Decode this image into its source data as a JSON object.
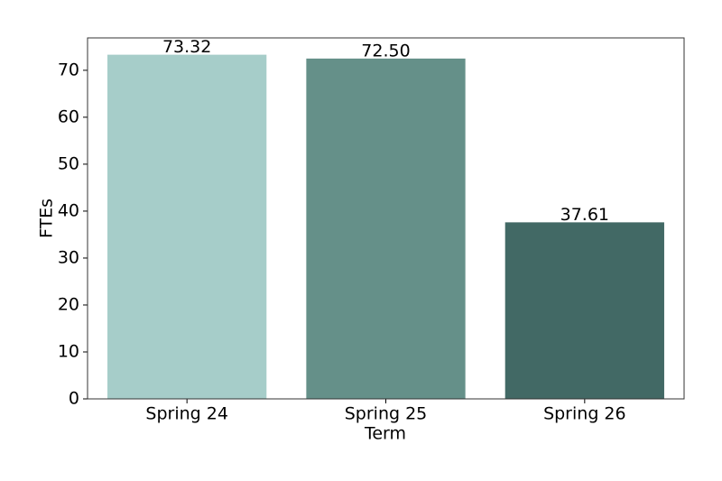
{
  "chart_data": {
    "type": "bar",
    "x_label": "Term",
    "y_label": "FTEs",
    "categories": [
      "Spring 24",
      "Spring 25",
      "Spring 26"
    ],
    "values": [
      73.32,
      72.5,
      37.61
    ],
    "value_labels": [
      "73.32",
      "72.50",
      "37.61"
    ],
    "colors": [
      "#a6cdc9",
      "#659089",
      "#426965"
    ],
    "ylim": [
      0,
      76.9
    ],
    "yticks": [
      0,
      10,
      20,
      30,
      40,
      50,
      60,
      70
    ],
    "grid": false
  }
}
